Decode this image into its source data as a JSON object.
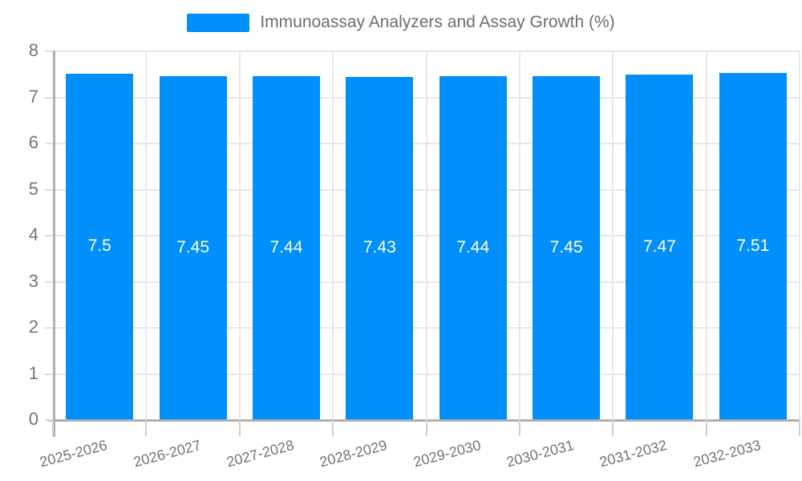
{
  "legend": {
    "label": "Immunoassay Analyzers and Assay Growth (%)"
  },
  "chart_data": {
    "type": "bar",
    "title": "Immunoassay Analyzers and Assay Growth (%)",
    "categories": [
      "2025-2026",
      "2026-2027",
      "2027-2028",
      "2028-2029",
      "2029-2030",
      "2030-2031",
      "2031-2032",
      "2032-2033"
    ],
    "series": [
      {
        "name": "Immunoassay Analyzers and Assay Growth (%)",
        "values": [
          7.5,
          7.45,
          7.44,
          7.43,
          7.44,
          7.45,
          7.47,
          7.51
        ]
      }
    ],
    "value_labels": [
      "7.5",
      "7.45",
      "7.44",
      "7.43",
      "7.44",
      "7.45",
      "7.47",
      "7.51"
    ],
    "xlabel": "",
    "ylabel": "",
    "ylim": [
      0,
      8
    ],
    "y_ticks": [
      0,
      1,
      2,
      3,
      4,
      5,
      6,
      7,
      8
    ],
    "grid": true,
    "legend_position": "top-center",
    "x_label_rotation_deg": -15
  },
  "colors": {
    "bar": "#008FFB",
    "value_label": "#ffffff",
    "axis_label": "#757575",
    "legend_text": "#6e6e6e",
    "gridline": "#e8e8e8",
    "axis_line": "#b0b0b0",
    "background": "#ffffff"
  }
}
